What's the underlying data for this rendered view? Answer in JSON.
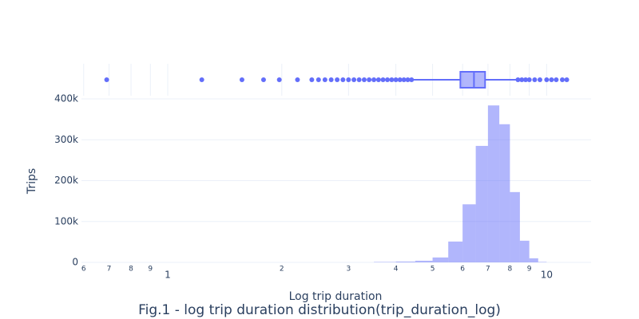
{
  "chart_data": [
    {
      "type": "histogram",
      "title": "Fig.1 - log trip duration distribution(trip_duration_log)",
      "x_label": "Log trip duration",
      "y_label": "Trips",
      "bins": [
        3.5,
        4,
        4.5,
        5,
        5.5,
        6,
        6.5,
        7,
        7.5,
        8,
        8.5,
        9,
        9.5,
        10
      ],
      "values": [
        1000,
        2000,
        4000,
        12000,
        51000,
        142000,
        285000,
        384000,
        338000,
        172000,
        53000,
        10000,
        1000
      ],
      "color": "#636efa",
      "log_x": true,
      "xlim": [
        0.592,
        13.1
      ],
      "xticks": [
        {
          "value": 0.6,
          "label": "6"
        },
        {
          "value": 0.7,
          "label": "7"
        },
        {
          "value": 0.8,
          "label": "8"
        },
        {
          "value": 0.9,
          "label": "9"
        },
        1,
        2,
        3,
        4,
        5,
        6,
        7,
        8,
        9,
        10
      ],
      "ylim": [
        0,
        400000
      ],
      "yticks": [
        {
          "value": 0,
          "label": "0"
        },
        {
          "value": 100000,
          "label": "100k"
        },
        {
          "value": 200000,
          "label": "200k"
        },
        {
          "value": 300000,
          "label": "300k"
        },
        {
          "value": 400000,
          "label": "400k"
        }
      ],
      "grid": true
    },
    {
      "type": "box",
      "color": "#636efa",
      "q1": 5.92,
      "median": 6.43,
      "q3": 6.88,
      "whisker_low": 4.45,
      "whisker_high": 8.32,
      "outliers": [
        0.69,
        1.23,
        1.57,
        1.79,
        1.97,
        2.2,
        2.4,
        2.5,
        2.6,
        2.7,
        2.8,
        2.9,
        3.0,
        3.1,
        3.2,
        3.3,
        3.4,
        3.5,
        3.6,
        3.7,
        3.8,
        3.9,
        4.0,
        4.1,
        4.2,
        4.3,
        4.4,
        8.4,
        8.6,
        8.8,
        9.0,
        9.3,
        9.6,
        10,
        10.3,
        10.6,
        11,
        11.3
      ]
    }
  ]
}
